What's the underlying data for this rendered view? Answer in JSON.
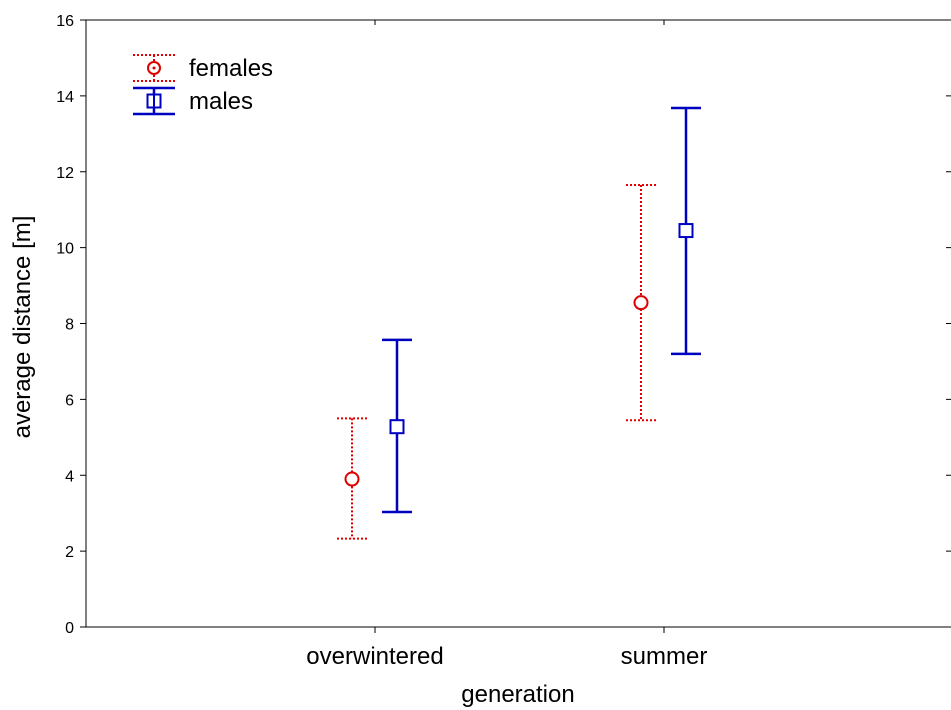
{
  "chart_data": {
    "type": "scatter",
    "xlabel": "generation",
    "ylabel": "average distance [m]",
    "categories": [
      "overwintered",
      "summer"
    ],
    "ylim": [
      0,
      16
    ],
    "yticks": [
      0,
      2,
      4,
      6,
      8,
      10,
      12,
      14,
      16
    ],
    "grid": false,
    "legend_position": "top-left",
    "series": [
      {
        "name": "females",
        "color": "#e00000",
        "marker": "circle",
        "line_style": "dotted",
        "values": [
          3.9,
          8.55
        ],
        "lower": [
          2.33,
          5.45
        ],
        "upper": [
          5.5,
          11.65
        ]
      },
      {
        "name": "males",
        "color": "#0000c0",
        "marker": "square",
        "line_style": "solid",
        "values": [
          5.28,
          10.45
        ],
        "lower": [
          3.03,
          7.2
        ],
        "upper": [
          7.57,
          13.68
        ]
      }
    ]
  }
}
